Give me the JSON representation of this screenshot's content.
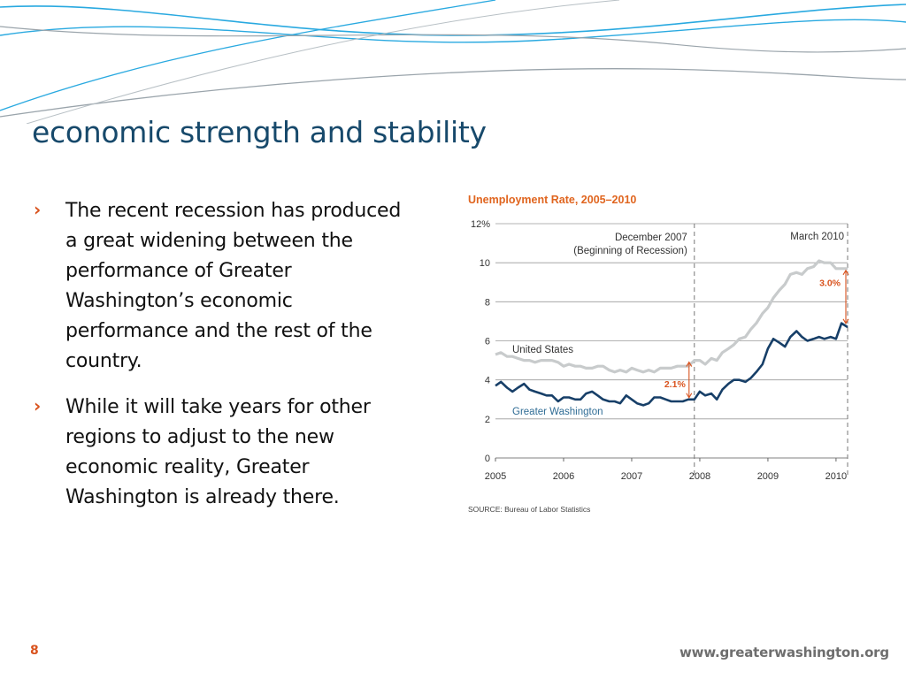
{
  "slide": {
    "title": "economic strength and stability",
    "bullets": [
      {
        "marker": "›",
        "text": "The recent recession has produced a great widening between the performance of Greater Washington’s economic performance and the rest of the country."
      },
      {
        "marker": "›",
        "text": "While it will take years for other regions to adjust to the new economic reality, Greater Washington is already there."
      }
    ],
    "page_number": "8",
    "footer_url": "www.greaterwashington.org"
  },
  "colors": {
    "title": "#17496b",
    "accent": "#d9531e",
    "wave_blue": "#29a9e0",
    "wave_gray": "#9aa4ab",
    "us_line": "#c8cbcc",
    "gw_line": "#173f68",
    "chart_title": "#e0651f",
    "grid": "#9a9a9a"
  },
  "chart_data": {
    "type": "line",
    "title": "Unemployment Rate, 2005–2010",
    "ylim": [
      0,
      12
    ],
    "y_ticks": [
      "0",
      "2",
      "4",
      "6",
      "8",
      "10",
      "12%"
    ],
    "x_ticks": [
      "2005",
      "2006",
      "2007",
      "2008",
      "2009",
      "2010"
    ],
    "xlim": [
      2005,
      2010.17
    ],
    "source": "SOURCE:  Bureau of Labor Statistics",
    "annotations": {
      "recession_date": "December 2007",
      "recession_caption": "(Beginning of Recession)",
      "recession_x": 2007.92,
      "march_label": "March 2010",
      "march_x": 2010.17,
      "gap_2007": "2.1%",
      "gap_2010": "3.0%"
    },
    "series": [
      {
        "name": "United States",
        "x": [
          2005.0,
          2005.08,
          2005.17,
          2005.25,
          2005.33,
          2005.42,
          2005.5,
          2005.58,
          2005.67,
          2005.75,
          2005.83,
          2005.92,
          2006.0,
          2006.08,
          2006.17,
          2006.25,
          2006.33,
          2006.42,
          2006.5,
          2006.58,
          2006.67,
          2006.75,
          2006.83,
          2006.92,
          2007.0,
          2007.08,
          2007.17,
          2007.25,
          2007.33,
          2007.42,
          2007.5,
          2007.58,
          2007.67,
          2007.75,
          2007.83,
          2007.92,
          2008.0,
          2008.08,
          2008.17,
          2008.25,
          2008.33,
          2008.42,
          2008.5,
          2008.58,
          2008.67,
          2008.75,
          2008.83,
          2008.92,
          2009.0,
          2009.08,
          2009.17,
          2009.25,
          2009.33,
          2009.42,
          2009.5,
          2009.58,
          2009.67,
          2009.75,
          2009.83,
          2009.92,
          2010.0,
          2010.08,
          2010.17
        ],
        "values": [
          5.3,
          5.4,
          5.2,
          5.2,
          5.1,
          5.0,
          5.0,
          4.9,
          5.0,
          5.0,
          5.0,
          4.9,
          4.7,
          4.8,
          4.7,
          4.7,
          4.6,
          4.6,
          4.7,
          4.7,
          4.5,
          4.4,
          4.5,
          4.4,
          4.6,
          4.5,
          4.4,
          4.5,
          4.4,
          4.6,
          4.6,
          4.6,
          4.7,
          4.7,
          4.7,
          5.0,
          5.0,
          4.8,
          5.1,
          5.0,
          5.4,
          5.6,
          5.8,
          6.1,
          6.2,
          6.6,
          6.9,
          7.4,
          7.7,
          8.2,
          8.6,
          8.9,
          9.4,
          9.5,
          9.4,
          9.7,
          9.8,
          10.1,
          10.0,
          10.0,
          9.7,
          9.7,
          9.7
        ]
      },
      {
        "name": "Greater Washington",
        "x": [
          2005.0,
          2005.08,
          2005.17,
          2005.25,
          2005.33,
          2005.42,
          2005.5,
          2005.58,
          2005.67,
          2005.75,
          2005.83,
          2005.92,
          2006.0,
          2006.08,
          2006.17,
          2006.25,
          2006.33,
          2006.42,
          2006.5,
          2006.58,
          2006.67,
          2006.75,
          2006.83,
          2006.92,
          2007.0,
          2007.08,
          2007.17,
          2007.25,
          2007.33,
          2007.42,
          2007.5,
          2007.58,
          2007.67,
          2007.75,
          2007.83,
          2007.92,
          2008.0,
          2008.08,
          2008.17,
          2008.25,
          2008.33,
          2008.42,
          2008.5,
          2008.58,
          2008.67,
          2008.75,
          2008.83,
          2008.92,
          2009.0,
          2009.08,
          2009.17,
          2009.25,
          2009.33,
          2009.42,
          2009.5,
          2009.58,
          2009.67,
          2009.75,
          2009.83,
          2009.92,
          2010.0,
          2010.08,
          2010.17
        ],
        "values": [
          3.7,
          3.9,
          3.6,
          3.4,
          3.6,
          3.8,
          3.5,
          3.4,
          3.3,
          3.2,
          3.2,
          2.9,
          3.1,
          3.1,
          3.0,
          3.0,
          3.3,
          3.4,
          3.2,
          3.0,
          2.9,
          2.9,
          2.8,
          3.2,
          3.0,
          2.8,
          2.7,
          2.8,
          3.1,
          3.1,
          3.0,
          2.9,
          2.9,
          2.9,
          3.0,
          3.0,
          3.4,
          3.2,
          3.3,
          3.0,
          3.5,
          3.8,
          4.0,
          4.0,
          3.9,
          4.1,
          4.4,
          4.8,
          5.6,
          6.1,
          5.9,
          5.7,
          6.2,
          6.5,
          6.2,
          6.0,
          6.1,
          6.2,
          6.1,
          6.2,
          6.1,
          6.9,
          6.7
        ]
      }
    ],
    "series_labels": [
      "United States",
      "Greater Washington"
    ]
  }
}
